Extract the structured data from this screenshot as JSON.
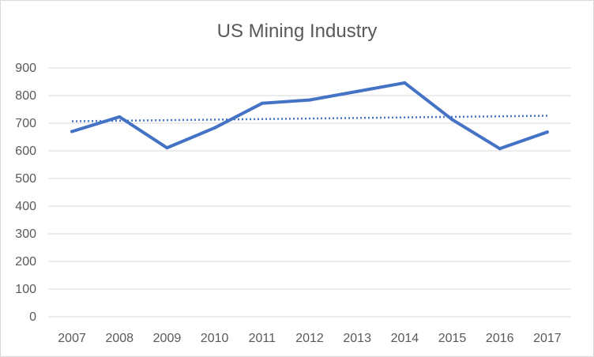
{
  "chart_data": {
    "type": "line",
    "title": "US Mining Industry",
    "xlabel": "",
    "ylabel": "",
    "categories": [
      "2007",
      "2008",
      "2009",
      "2010",
      "2011",
      "2012",
      "2013",
      "2014",
      "2015",
      "2016",
      "2017"
    ],
    "series": [
      {
        "values": [
          670,
          723,
          611,
          683,
          772,
          784,
          815,
          846,
          713,
          608,
          668
        ],
        "color": "#4472c4",
        "style": "solid"
      }
    ],
    "trendline": {
      "type": "linear",
      "start": 707,
      "end": 727,
      "color": "#4472c4",
      "style": "dotted"
    },
    "ylim": [
      0,
      900
    ],
    "yticks": [
      "0",
      "100",
      "200",
      "300",
      "400",
      "500",
      "600",
      "700",
      "800",
      "900"
    ],
    "grid": true,
    "legend": "none"
  }
}
